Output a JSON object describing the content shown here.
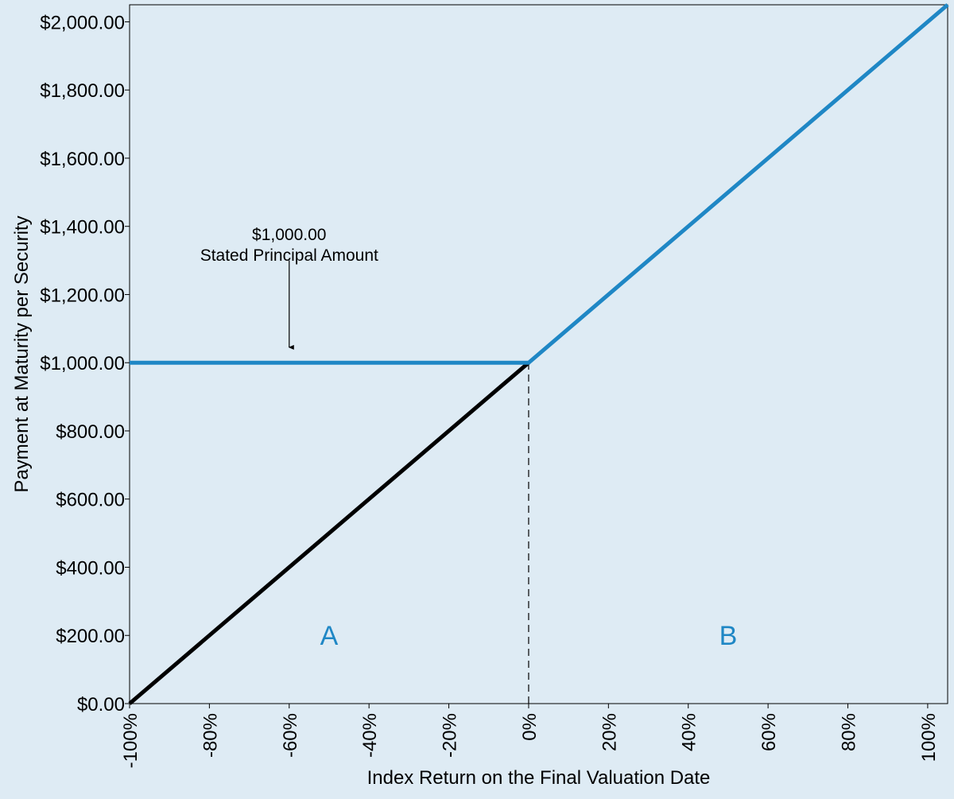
{
  "chart_data": {
    "type": "line",
    "title": "",
    "xlabel": "Index Return on the Final Valuation Date",
    "ylabel": "Payment at Maturity per Security",
    "xlim": [
      -100,
      105
    ],
    "ylim": [
      0,
      2050
    ],
    "x_ticks": [
      -100,
      -80,
      -60,
      -40,
      -20,
      0,
      20,
      40,
      60,
      80,
      100
    ],
    "x_tick_labels": [
      "-100%",
      "-80%",
      "-60%",
      "-40%",
      "-20%",
      "0%",
      "20%",
      "40%",
      "60%",
      "80%",
      "100%"
    ],
    "y_ticks": [
      0,
      200,
      400,
      600,
      800,
      1000,
      1200,
      1400,
      1600,
      1800,
      2000
    ],
    "y_tick_labels": [
      "$0.00",
      "$200.00",
      "$400.00",
      "$600.00",
      "$800.00",
      "$1,000.00",
      "$1,200.00",
      "$1,400.00",
      "$1,600.00",
      "$1,800.00",
      "$2,000.00"
    ],
    "grid": false,
    "legend": "none",
    "series": [
      {
        "color": "#000000",
        "x": [
          -100,
          0
        ],
        "y": [
          0,
          1000
        ]
      },
      {
        "color": "#1f87c5",
        "x": [
          -100,
          0,
          105
        ],
        "y": [
          1000,
          1000,
          2050
        ]
      }
    ],
    "reference_lines": [
      {
        "orientation": "vertical",
        "x": 0,
        "y_from": 0,
        "y_to": 1000,
        "style": "dashed",
        "color": "#000000"
      }
    ],
    "annotations": [
      {
        "lines": [
          "$1,000.00",
          "Stated Principal Amount"
        ],
        "x": -60,
        "y": 1360,
        "arrow_from_y": 1300,
        "arrow_to_y": 1045
      }
    ],
    "region_labels": [
      {
        "text": "A",
        "x": -50,
        "y": 200,
        "color": "#1f87c5"
      },
      {
        "text": "B",
        "x": 50,
        "y": 200,
        "color": "#1f87c5"
      }
    ]
  },
  "colors": {
    "background": "#deebf4",
    "accent": "#1f87c5",
    "axis": "#000000"
  }
}
